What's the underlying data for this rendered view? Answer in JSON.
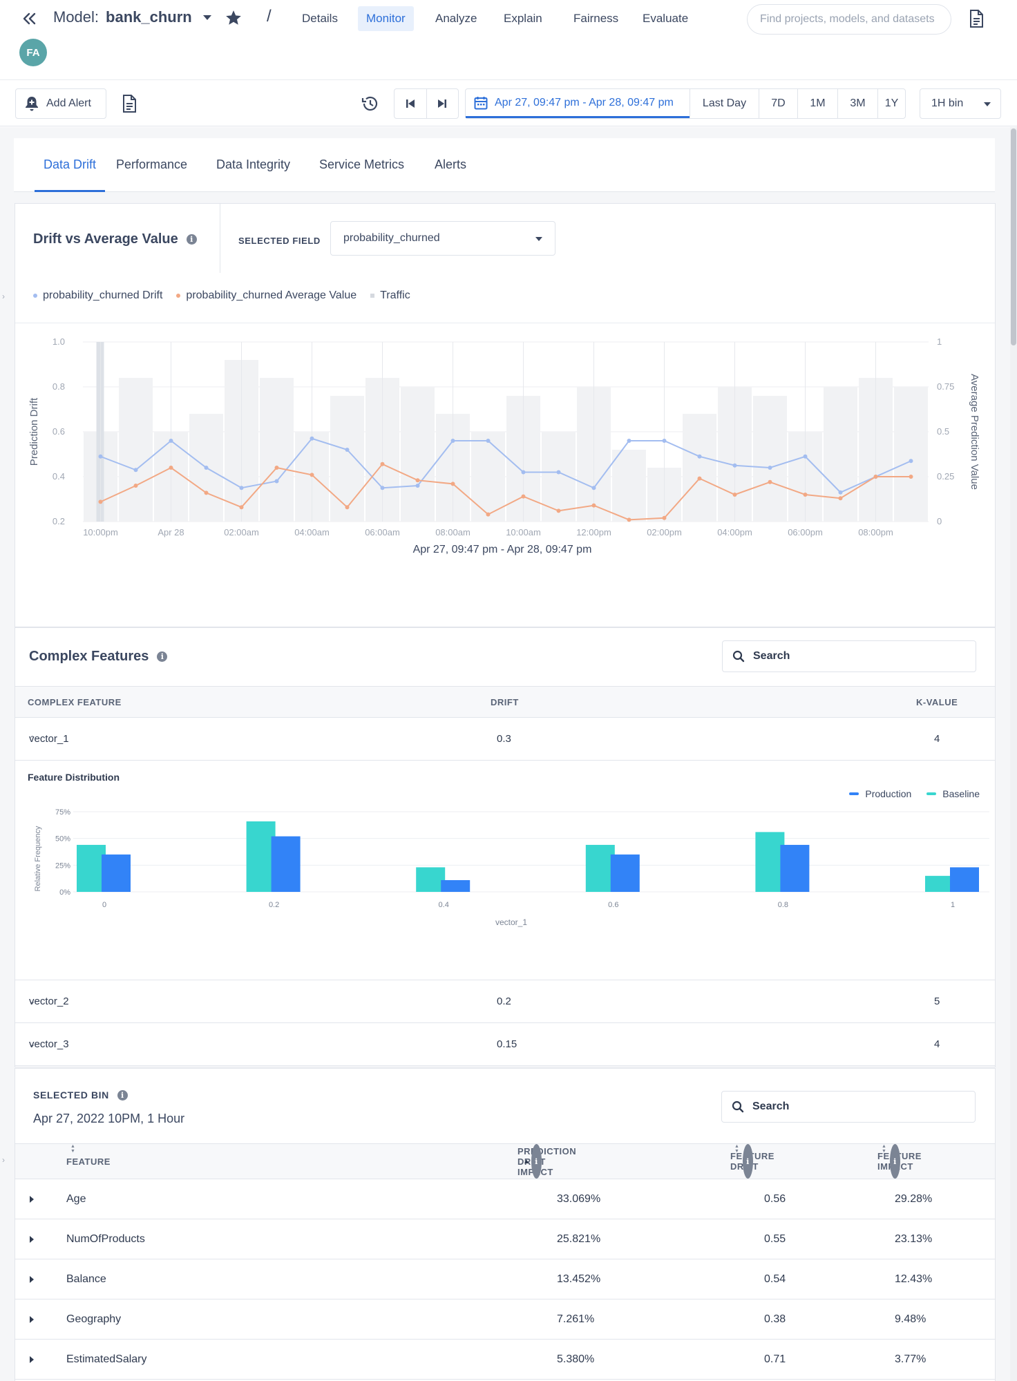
{
  "header": {
    "model_prefix": "Model:",
    "model_name": "bank_churn",
    "slash": "/",
    "nav": [
      {
        "label": "Details",
        "active": false
      },
      {
        "label": "Monitor",
        "active": true
      },
      {
        "label": "Analyze",
        "active": false
      },
      {
        "label": "Explain",
        "active": false
      },
      {
        "label": "Fairness",
        "active": false
      },
      {
        "label": "Evaluate",
        "active": false
      }
    ],
    "search_placeholder": "Find projects, models, and datasets",
    "avatar_initials": "FA"
  },
  "toolbar": {
    "add_alert_label": "Add Alert",
    "date_range": "Apr 27, 09:47 pm - Apr 28, 09:47 pm",
    "ranges": [
      "Last Day",
      "7D",
      "1M",
      "3M",
      "1Y"
    ],
    "bin": "1H bin"
  },
  "tabs": [
    "Data Drift",
    "Performance",
    "Data Integrity",
    "Service Metrics",
    "Alerts"
  ],
  "drift": {
    "title": "Drift vs Average Value",
    "selected_field_label": "SELECTED FIELD",
    "selected_field": "probability_churned",
    "legend": {
      "drift": "probability_churned Drift",
      "avg": "probability_churned Average Value",
      "traffic": "Traffic"
    }
  },
  "chart_data": [
    {
      "type": "line",
      "title": "Drift vs Average Value",
      "xlabel": "Apr 27, 09:47 pm - Apr 28, 09:47 pm",
      "ylabel": "Prediction Drift",
      "y2label": "Average Prediction Value",
      "ylim": [
        0.2,
        1.0
      ],
      "y2lim": [
        0,
        1
      ],
      "yticks": [
        "1.0",
        "0.8",
        "0.6",
        "0.4",
        "0.2"
      ],
      "y2ticks": [
        "1",
        "0.75",
        "0.5",
        "0.25",
        "0"
      ],
      "xticks": [
        "10:00pm",
        "Apr 28",
        "02:00am",
        "04:00am",
        "06:00am",
        "08:00am",
        "10:00am",
        "12:00pm",
        "02:00pm",
        "04:00pm",
        "06:00pm",
        "08:00pm"
      ],
      "hours": [
        0,
        1,
        2,
        3,
        4,
        5,
        6,
        7,
        8,
        9,
        10,
        11,
        12,
        13,
        14,
        15,
        16,
        17,
        18,
        19,
        20,
        21,
        22,
        23
      ],
      "series": [
        {
          "name": "probability_churned Drift",
          "color": "#a3bdf0",
          "values": [
            0.49,
            0.43,
            0.56,
            0.44,
            0.35,
            0.38,
            0.57,
            0.52,
            0.35,
            0.36,
            0.56,
            0.56,
            0.42,
            0.42,
            0.35,
            0.56,
            0.56,
            0.49,
            0.45,
            0.44,
            0.49,
            0.33,
            0.4,
            0.47
          ]
        },
        {
          "name": "probability_churned Average Value",
          "color": "#f2a884",
          "values": [
            0.11,
            0.2,
            0.3,
            0.16,
            0.08,
            0.3,
            0.26,
            0.08,
            0.32,
            0.23,
            0.21,
            0.04,
            0.14,
            0.06,
            0.09,
            0.01,
            0.02,
            0.24,
            0.15,
            0.22,
            0.15,
            0.13,
            0.25,
            0.25
          ]
        },
        {
          "name": "Traffic",
          "color": "#f1f2f4",
          "values": [
            0.5,
            0.8,
            0.5,
            0.6,
            0.9,
            0.8,
            0.5,
            0.7,
            0.8,
            0.75,
            0.6,
            0.5,
            0.7,
            0.5,
            0.75,
            0.4,
            0.3,
            0.6,
            0.75,
            0.7,
            0.5,
            0.75,
            0.8,
            0.75
          ]
        }
      ]
    },
    {
      "type": "bar",
      "title": "Feature Distribution",
      "xlabel": "vector_1",
      "ylabel": "Relative Frequency",
      "ylim": [
        0,
        75
      ],
      "yticks": [
        "75%",
        "50%",
        "25%",
        "0%"
      ],
      "categories": [
        "0",
        "0.2",
        "0.4",
        "0.6",
        "0.8",
        "1"
      ],
      "series": [
        {
          "name": "Baseline",
          "color": "#38d6cf",
          "values": [
            44,
            66,
            23,
            44,
            56,
            15
          ]
        },
        {
          "name": "Production",
          "color": "#3283f7",
          "values": [
            35,
            52,
            11,
            35,
            44,
            23
          ]
        }
      ]
    }
  ],
  "complex": {
    "title": "Complex Features",
    "search_placeholder": "Search",
    "headers": {
      "feature": "COMPLEX FEATURE",
      "drift": "DRIFT",
      "k": "K-VALUE"
    },
    "rows": [
      {
        "name": "vector_1",
        "drift": "0.3",
        "k": "4",
        "expanded": true
      },
      {
        "name": "vector_2",
        "drift": "0.2",
        "k": "5",
        "expanded": false
      },
      {
        "name": "vector_3",
        "drift": "0.15",
        "k": "4",
        "expanded": false
      }
    ],
    "dist_title": "Feature Distribution",
    "dist_legend": {
      "production": "Production",
      "baseline": "Baseline"
    }
  },
  "selected_bin": {
    "label": "SELECTED BIN",
    "value": "Apr 27, 2022 10PM, 1 Hour",
    "search_placeholder": "Search",
    "headers": {
      "feature": "FEATURE",
      "pdi": "PREDICTION DRIFT IMPACT",
      "fd": "FEATURE DRIFT",
      "fi": "FEATURE IMPACT"
    },
    "rows": [
      {
        "feature": "Age",
        "pdi": "33.069%",
        "fd": "0.56",
        "fi": "29.28%"
      },
      {
        "feature": "NumOfProducts",
        "pdi": "25.821%",
        "fd": "0.55",
        "fi": "23.13%"
      },
      {
        "feature": "Balance",
        "pdi": "13.452%",
        "fd": "0.54",
        "fi": "12.43%"
      },
      {
        "feature": "Geography",
        "pdi": "7.261%",
        "fd": "0.38",
        "fi": "9.48%"
      },
      {
        "feature": "EstimatedSalary",
        "pdi": "5.380%",
        "fd": "0.71",
        "fi": "3.77%"
      }
    ]
  },
  "colors": {
    "accent": "#2d6fd9",
    "avatar": "#5aa5a8"
  }
}
